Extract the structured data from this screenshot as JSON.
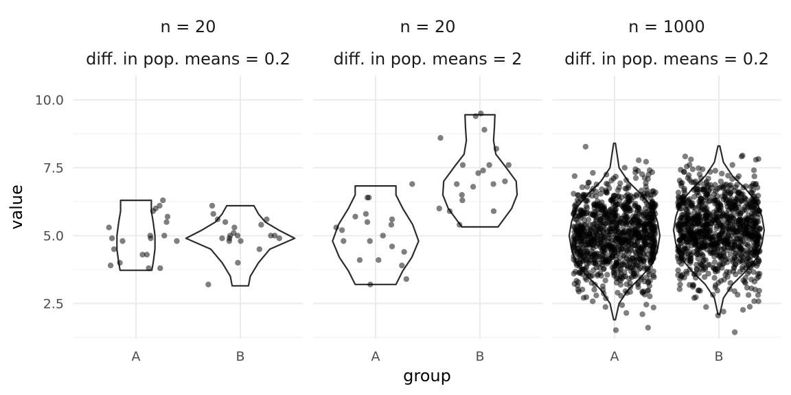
{
  "chart_data": {
    "type": "violin",
    "xlabel": "group",
    "ylabel": "value",
    "ylim": [
      1.2,
      10.9
    ],
    "y_ticks": [
      "2.5",
      "5.0",
      "7.5",
      "10.0"
    ],
    "y_tick_values": [
      2.5,
      5.0,
      7.5,
      10.0
    ],
    "categories": [
      "A",
      "B"
    ],
    "grid": true,
    "point_alpha": 0.5,
    "facets": [
      {
        "title_line1": "n = 20",
        "title_line2": "diff. in pop. means = 0.2",
        "groups": [
          {
            "name": "A",
            "points": [
              3.8,
              4.0,
              4.3,
              4.8,
              4.9,
              5.0,
              5.3,
              5.7,
              5.9,
              6.3,
              6.0,
              4.8,
              3.8,
              3.9,
              4.3,
              4.5,
              4.9,
              6.1,
              5.5,
              5.0
            ],
            "violin": [
              [
                3.72,
                0.35
              ],
              [
                4.0,
                0.38
              ],
              [
                4.5,
                0.42
              ],
              [
                5.0,
                0.42
              ],
              [
                5.5,
                0.38
              ],
              [
                5.9,
                0.34
              ],
              [
                6.3,
                0.34
              ]
            ]
          },
          {
            "name": "B",
            "points": [
              3.2,
              4.0,
              4.5,
              4.8,
              4.9,
              4.9,
              5.0,
              5.0,
              5.1,
              5.3,
              5.6,
              5.8,
              6.1,
              5.5,
              5.0,
              4.8,
              4.9,
              5.0,
              5.4,
              5.6
            ],
            "violin": [
              [
                3.15,
                0.18
              ],
              [
                3.5,
                0.22
              ],
              [
                4.0,
                0.4
              ],
              [
                4.5,
                0.65
              ],
              [
                4.9,
                1.2
              ],
              [
                5.2,
                0.85
              ],
              [
                5.5,
                0.55
              ],
              [
                5.8,
                0.4
              ],
              [
                6.1,
                0.3
              ]
            ]
          }
        ]
      },
      {
        "title_line1": "n = 20",
        "title_line2": "diff. in pop. means = 2",
        "groups": [
          {
            "name": "A",
            "points": [
              3.2,
              3.4,
              3.9,
              4.1,
              4.1,
              4.4,
              4.6,
              4.8,
              5.0,
              5.2,
              5.4,
              5.5,
              5.6,
              5.7,
              5.8,
              6.4,
              6.4,
              6.9,
              4.8,
              5.3
            ],
            "violin": [
              [
                3.2,
                0.45
              ],
              [
                3.7,
                0.6
              ],
              [
                4.2,
                0.8
              ],
              [
                4.8,
                0.95
              ],
              [
                5.4,
                0.82
              ],
              [
                6.0,
                0.6
              ],
              [
                6.5,
                0.45
              ],
              [
                6.83,
                0.45
              ]
            ]
          },
          {
            "name": "B",
            "points": [
              5.4,
              5.9,
              5.9,
              6.0,
              6.3,
              6.5,
              6.8,
              6.9,
              7.0,
              7.3,
              7.4,
              7.6,
              7.6,
              8.2,
              8.6,
              8.9,
              9.4,
              9.5,
              6.9,
              7.6
            ],
            "violin": [
              [
                5.32,
                0.4
              ],
              [
                6.0,
                0.7
              ],
              [
                6.5,
                0.82
              ],
              [
                7.0,
                0.8
              ],
              [
                7.5,
                0.58
              ],
              [
                8.0,
                0.35
              ],
              [
                8.5,
                0.3
              ],
              [
                9.0,
                0.32
              ],
              [
                9.45,
                0.33
              ]
            ]
          }
        ]
      },
      {
        "title_line1": "n = 1000",
        "title_line2": "diff. in pop. means = 0.2",
        "groups": [
          {
            "name": "A",
            "mean": 5.0,
            "sd": 1.0,
            "count": 1000,
            "violin": [
              [
                1.9,
                0.02
              ],
              [
                2.5,
                0.1
              ],
              [
                3.0,
                0.3
              ],
              [
                3.5,
                0.6
              ],
              [
                4.0,
                0.85
              ],
              [
                4.5,
                0.95
              ],
              [
                5.0,
                1.0
              ],
              [
                5.5,
                0.95
              ],
              [
                6.0,
                0.85
              ],
              [
                6.5,
                0.6
              ],
              [
                7.0,
                0.3
              ],
              [
                7.5,
                0.1
              ],
              [
                8.4,
                0.02
              ]
            ]
          },
          {
            "name": "B",
            "mean": 5.2,
            "sd": 1.0,
            "count": 1000,
            "violin": [
              [
                2.1,
                0.02
              ],
              [
                2.7,
                0.1
              ],
              [
                3.2,
                0.3
              ],
              [
                3.7,
                0.6
              ],
              [
                4.2,
                0.85
              ],
              [
                4.7,
                0.95
              ],
              [
                5.2,
                1.0
              ],
              [
                5.7,
                0.95
              ],
              [
                6.2,
                0.85
              ],
              [
                6.7,
                0.6
              ],
              [
                7.2,
                0.3
              ],
              [
                7.7,
                0.1
              ],
              [
                8.3,
                0.02
              ]
            ]
          }
        ]
      }
    ]
  }
}
